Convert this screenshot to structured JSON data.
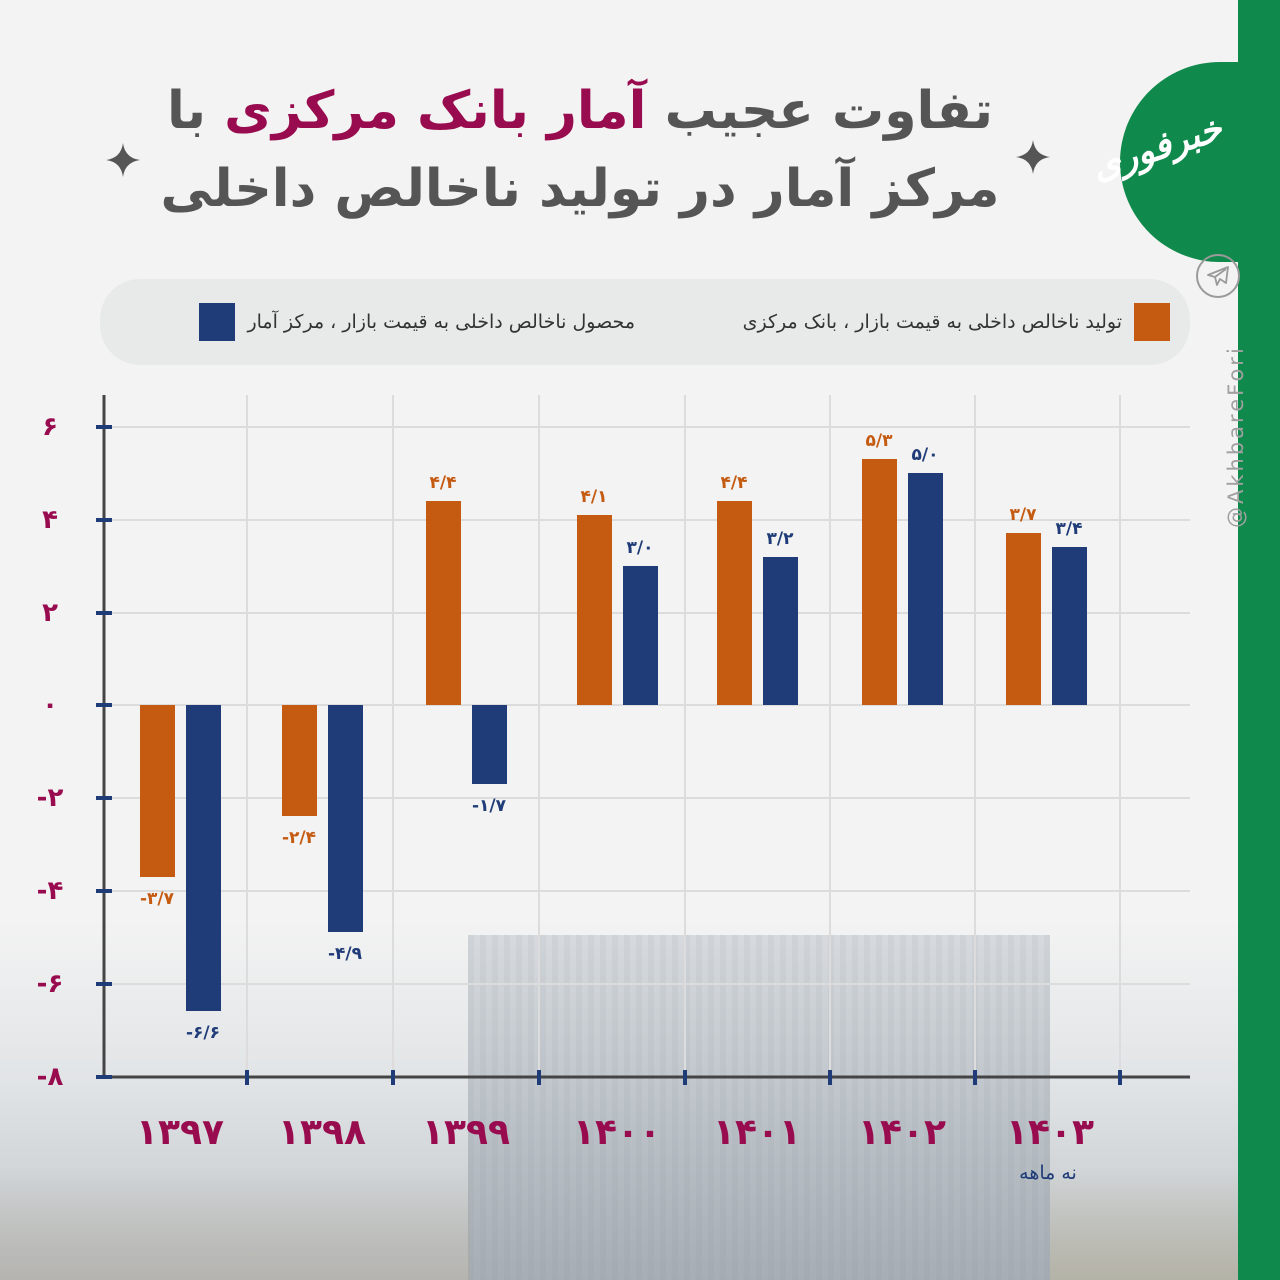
{
  "title": {
    "line1_part1": "تفاوت عجیب",
    "line1_highlight": "آمار بانک مرکزی",
    "line1_part2": "با",
    "line2": "مرکز آمار در تولید ناخالص داخلی"
  },
  "brand": {
    "logo_text": "خبرفوری",
    "handle": "@AkhbareFori",
    "telegram_icon": "telegram-icon"
  },
  "colors": {
    "central_bank": "#c55a11",
    "statistical_center": "#1f3c78",
    "axis_labels": "#990b4f",
    "title_text": "#555555",
    "brand_green": "#0f8a4c"
  },
  "legend": [
    {
      "label": "تولید ناخالص داخلی به قیمت بازار ، بانک مرکزی",
      "color": "#c55a11"
    },
    {
      "label": "محصول ناخالص داخلی به قیمت بازار ، مرکز آمار",
      "color": "#1f3c78"
    }
  ],
  "chart_data": {
    "type": "bar",
    "title": "تفاوت عجیب آمار بانک مرکزی با مرکز آمار در تولید ناخالص داخلی",
    "xlabel": "",
    "ylabel": "",
    "categories": [
      "۱۳۹۷",
      "۱۳۹۸",
      "۱۳۹۹",
      "۱۴۰۰",
      "۱۴۰۱",
      "۱۴۰۲",
      "۱۴۰۳"
    ],
    "category_notes": [
      "",
      "",
      "",
      "",
      "",
      "",
      "نه ماهه"
    ],
    "series": [
      {
        "name": "تولید ناخالص داخلی به قیمت بازار ، بانک مرکزی",
        "color": "#c55a11",
        "values": [
          -3.7,
          -2.4,
          4.4,
          4.1,
          4.4,
          5.3,
          3.7
        ],
        "labels": [
          "-۳/۷",
          "-۲/۴",
          "۴/۴",
          "۴/۱",
          "۴/۴",
          "۵/۳",
          "۳/۷"
        ]
      },
      {
        "name": "محصول ناخالص داخلی به قیمت بازار ، مرکز آمار",
        "color": "#1f3c78",
        "values": [
          -6.6,
          -4.9,
          -1.7,
          3.0,
          3.2,
          5.0,
          3.4
        ],
        "labels": [
          "-۶/۶",
          "-۴/۹",
          "-۱/۷",
          "۳/۰",
          "۳/۲",
          "۵/۰",
          "۳/۴"
        ]
      }
    ],
    "yticks": [
      6,
      4,
      2,
      0,
      -2,
      -4,
      -6,
      -8
    ],
    "ytick_labels": [
      "۶",
      "۴",
      "۲",
      "۰",
      "-۲",
      "-۴",
      "-۶",
      "-۸"
    ],
    "ylim": [
      -8,
      7
    ],
    "grid": true,
    "legend_position": "top"
  }
}
